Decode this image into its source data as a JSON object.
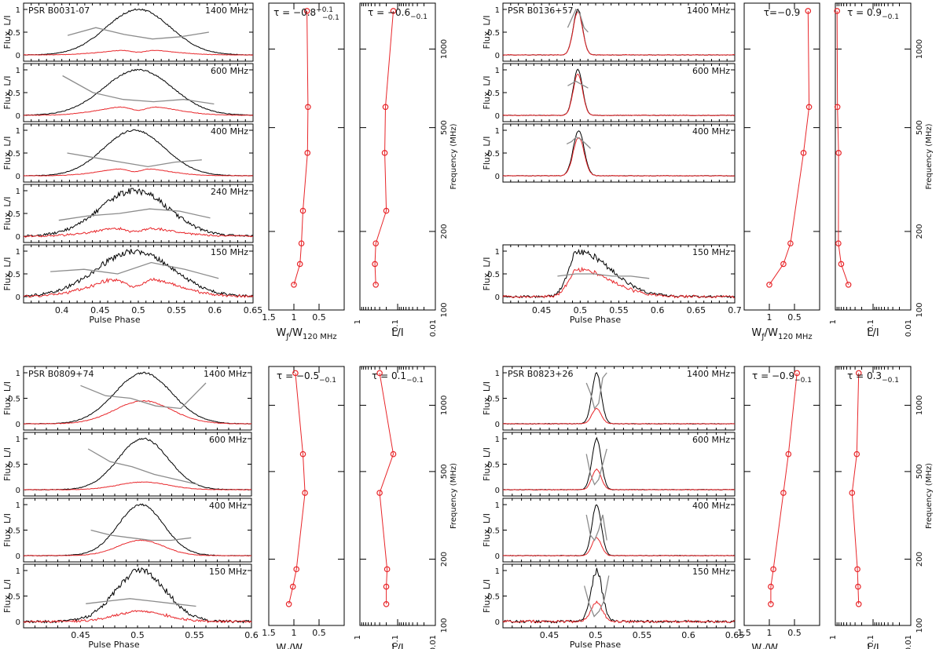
{
  "chart_data": [
    {
      "pulsar": "PSR  B0031-07",
      "type": "line",
      "profiles": [
        {
          "freq_label": "1400 MHz",
          "peak": 0.5,
          "width": 0.042,
          "L_frac": 0.12,
          "pa": [
            0.43,
            0.6,
            0.45,
            0.35,
            0.4,
            0.5
          ]
        },
        {
          "freq_label": "600 MHz",
          "peak": 0.5,
          "width": 0.045,
          "L_frac": 0.22,
          "pa": [
            0.87,
            0.5,
            0.35,
            0.3,
            0.35,
            0.25
          ]
        },
        {
          "freq_label": "400 MHz",
          "peak": 0.495,
          "width": 0.04,
          "L_frac": 0.18,
          "pa": [
            0.5,
            0.4,
            0.3,
            0.2,
            0.3,
            0.35
          ]
        },
        {
          "freq_label": "240 MHz",
          "peak": 0.495,
          "width": 0.045,
          "L_frac": 0.2,
          "pa": [
            0.35,
            0.45,
            0.5,
            0.6,
            0.55,
            0.4
          ]
        },
        {
          "freq_label": "150 MHz",
          "peak": 0.495,
          "width": 0.05,
          "L_frac": 0.45,
          "pa": [
            0.55,
            0.6,
            0.5,
            0.75,
            0.6,
            0.4
          ]
        }
      ],
      "phase_axis": {
        "label": "Pulse Phase",
        "min": 0.35,
        "max": 0.65,
        "ticks": [
          "0.4",
          "0.45",
          "0.5",
          "0.55",
          "0.6",
          "0.65"
        ]
      },
      "width_panel": {
        "tau": "τ = −0.8",
        "tau_sup": "+0.1",
        "tau_sub": "−0.1",
        "xlabel": "W",
        "xlabel_sub": "ƒ",
        "xlabel_tail": "/W",
        "xlabel_tail_sub": "120 MHz",
        "ticks": [
          "1.5",
          "1",
          "0.5"
        ],
        "points": [
          {
            "freq": 1400,
            "value": 0.74
          },
          {
            "freq": 600,
            "value": 0.72
          },
          {
            "freq": 400,
            "value": 0.73
          },
          {
            "freq": 240,
            "value": 0.82
          },
          {
            "freq": 180,
            "value": 0.85
          },
          {
            "freq": 150,
            "value": 0.88
          },
          {
            "freq": 125,
            "value": 1.0
          }
        ]
      },
      "lin_panel": {
        "tau": "τ = −0.6",
        "tau_sup": "",
        "tau_sub": "−0.1",
        "xlabel": "L/I",
        "ticks": [
          "1",
          "0.1",
          "0.01"
        ],
        "points": [
          {
            "freq": 1400,
            "value": 0.13
          },
          {
            "freq": 600,
            "value": 0.21
          },
          {
            "freq": 400,
            "value": 0.22
          },
          {
            "freq": 240,
            "value": 0.2
          },
          {
            "freq": 180,
            "value": 0.38
          },
          {
            "freq": 150,
            "value": 0.4
          },
          {
            "freq": 125,
            "value": 0.38
          }
        ]
      },
      "freq_axis": {
        "label": "Frequency (MHz)",
        "ticks": [
          "1000",
          "500",
          "200",
          "100"
        ]
      }
    },
    {
      "pulsar": "PSR  B0136+57",
      "type": "line",
      "profiles": [
        {
          "freq_label": "1400 MHz",
          "peak": 0.497,
          "width": 0.006,
          "L_frac": 0.95,
          "pa": [
            0.6,
            0.8,
            1.0,
            0.9,
            0.6,
            0.5
          ]
        },
        {
          "freq_label": "600 MHz",
          "peak": 0.497,
          "width": 0.006,
          "L_frac": 0.9,
          "pa": [
            0.65,
            0.7,
            0.75,
            0.7,
            0.65,
            0.6
          ]
        },
        {
          "freq_label": "400 MHz",
          "peak": 0.498,
          "width": 0.007,
          "L_frac": 0.85,
          "pa": [
            0.7,
            0.75,
            0.85,
            0.8,
            0.7,
            0.6
          ]
        },
        {
          "freq_label": "150 MHz",
          "peak": 0.497,
          "width": 0.012,
          "L_frac": 0.6,
          "pa": [
            0.45,
            0.5,
            0.5,
            0.45,
            0.45,
            0.4
          ]
        }
      ],
      "phase_axis": {
        "label": "Pulse Phase",
        "min": 0.4,
        "max": 0.7,
        "ticks": [
          "0.45",
          "0.5",
          "0.55",
          "0.6",
          "0.65",
          "0.7"
        ]
      },
      "width_panel": {
        "tau": "τ=−0.9",
        "tau_sup": "",
        "tau_sub": "",
        "xlabel": "W",
        "xlabel_sub": "ƒ",
        "xlabel_tail": "/W",
        "xlabel_tail_sub": "120 MHz",
        "ticks": [
          "1",
          "0.5"
        ],
        "points": [
          {
            "freq": 1400,
            "value": 0.23
          },
          {
            "freq": 600,
            "value": 0.21
          },
          {
            "freq": 400,
            "value": 0.32
          },
          {
            "freq": 180,
            "value": 0.58
          },
          {
            "freq": 150,
            "value": 0.72
          },
          {
            "freq": 125,
            "value": 1.0
          }
        ]
      },
      "lin_panel": {
        "tau": "τ = 0.9",
        "tau_sup": "",
        "tau_sub": "−0.1",
        "xlabel": "L/I",
        "ticks": [
          "1",
          "0.1",
          "0.01"
        ],
        "points": [
          {
            "freq": 1400,
            "value": 0.9
          },
          {
            "freq": 600,
            "value": 0.88
          },
          {
            "freq": 400,
            "value": 0.82
          },
          {
            "freq": 180,
            "value": 0.83
          },
          {
            "freq": 150,
            "value": 0.7
          },
          {
            "freq": 125,
            "value": 0.45
          }
        ]
      },
      "freq_axis": {
        "label": "Frequency (MHz)",
        "ticks": [
          "1000",
          "500",
          "200",
          "100"
        ]
      }
    },
    {
      "pulsar": "PSR  B0809+74",
      "type": "line",
      "profiles": [
        {
          "freq_label": "1400 MHz",
          "peak": 0.505,
          "width": 0.025,
          "L_frac": 0.45,
          "pa": [
            0.75,
            0.55,
            0.5,
            0.35,
            0.3,
            0.8
          ]
        },
        {
          "freq_label": "600 MHz",
          "peak": 0.505,
          "width": 0.022,
          "L_frac": 0.15,
          "pa": [
            0.8,
            0.55,
            0.45,
            0.3,
            0.2,
            0.1
          ]
        },
        {
          "freq_label": "400 MHz",
          "peak": 0.503,
          "width": 0.02,
          "L_frac": 0.3,
          "pa": [
            0.5,
            0.4,
            0.35,
            0.3,
            0.3,
            0.35
          ]
        },
        {
          "freq_label": "150 MHz",
          "peak": 0.503,
          "width": 0.022,
          "L_frac": 0.2,
          "pa": [
            0.35,
            0.4,
            0.45,
            0.4,
            0.35,
            0.3
          ]
        }
      ],
      "phase_axis": {
        "label": "Pulse Phase",
        "min": 0.4,
        "max": 0.6,
        "ticks": [
          "0.45",
          "0.5",
          "0.55",
          "0.6"
        ]
      },
      "width_panel": {
        "tau": "τ = −0.5",
        "tau_sup": "",
        "tau_sub": "−0.1",
        "xlabel": "W",
        "xlabel_sub": "ƒ",
        "xlabel_tail": "/W",
        "xlabel_tail_sub": "120 MHz",
        "ticks": [
          "1.5",
          "1",
          "0.5"
        ],
        "points": [
          {
            "freq": 1400,
            "value": 0.97
          },
          {
            "freq": 600,
            "value": 0.82
          },
          {
            "freq": 400,
            "value": 0.78
          },
          {
            "freq": 180,
            "value": 0.95
          },
          {
            "freq": 150,
            "value": 1.02
          },
          {
            "freq": 125,
            "value": 1.1
          }
        ]
      },
      "lin_panel": {
        "tau": "τ = 0.1",
        "tau_sup": "",
        "tau_sub": "−0.1",
        "xlabel": "L/I",
        "ticks": [
          "1",
          "0.1",
          "0.01"
        ],
        "points": [
          {
            "freq": 1400,
            "value": 0.3
          },
          {
            "freq": 600,
            "value": 0.13
          },
          {
            "freq": 400,
            "value": 0.3
          },
          {
            "freq": 180,
            "value": 0.19
          },
          {
            "freq": 150,
            "value": 0.2
          },
          {
            "freq": 125,
            "value": 0.2
          }
        ]
      },
      "freq_axis": {
        "label": "Frequency (MHz)",
        "ticks": [
          "1000",
          "500",
          "200",
          "100"
        ]
      }
    },
    {
      "pulsar": "PSR  B0823+26",
      "type": "line",
      "profiles": [
        {
          "freq_label": "1400 MHz",
          "peak": 0.501,
          "width": 0.005,
          "L_frac": 0.3,
          "pa": [
            0.8,
            0.6,
            0.3,
            0.4,
            0.9,
            1.0
          ]
        },
        {
          "freq_label": "600 MHz",
          "peak": 0.501,
          "width": 0.005,
          "L_frac": 0.4,
          "pa": [
            0.7,
            0.3,
            0.1,
            0.2,
            0.5,
            0.8
          ]
        },
        {
          "freq_label": "400 MHz",
          "peak": 0.501,
          "width": 0.005,
          "L_frac": 0.35,
          "pa": [
            0.8,
            0.4,
            0.3,
            0.5,
            0.8,
            0.3
          ]
        },
        {
          "freq_label": "150 MHz",
          "peak": 0.501,
          "width": 0.006,
          "L_frac": 0.38,
          "pa": [
            0.7,
            0.35,
            0.1,
            0.2,
            0.4,
            0.9
          ]
        }
      ],
      "phase_axis": {
        "label": "Pulse Phase",
        "min": 0.4,
        "max": 0.65,
        "ticks": [
          "0.45",
          "0.5",
          "0.55",
          "0.6",
          "0.65"
        ]
      },
      "width_panel": {
        "tau": "τ = −0.9",
        "tau_sup": "",
        "tau_sub": "−0.1",
        "xlabel": "W",
        "xlabel_sub": "ƒ",
        "xlabel_tail": "/W",
        "xlabel_tail_sub": "120 MHz",
        "ticks": [
          "1.5",
          "1",
          "0.5"
        ],
        "points": [
          {
            "freq": 1400,
            "value": 0.45
          },
          {
            "freq": 600,
            "value": 0.62
          },
          {
            "freq": 400,
            "value": 0.72
          },
          {
            "freq": 180,
            "value": 0.92
          },
          {
            "freq": 150,
            "value": 0.97
          },
          {
            "freq": 125,
            "value": 0.97
          }
        ]
      },
      "lin_panel": {
        "tau": "τ = 0.3",
        "tau_sup": "",
        "tau_sub": "−0.1",
        "xlabel": "L/I",
        "ticks": [
          "1",
          "0.1",
          "0.01"
        ],
        "points": [
          {
            "freq": 1400,
            "value": 0.24
          },
          {
            "freq": 600,
            "value": 0.27
          },
          {
            "freq": 400,
            "value": 0.36
          },
          {
            "freq": 180,
            "value": 0.26
          },
          {
            "freq": 150,
            "value": 0.25
          },
          {
            "freq": 125,
            "value": 0.24
          }
        ]
      },
      "freq_axis": {
        "label": "Frequency (MHz)",
        "ticks": [
          "1000",
          "500",
          "200",
          "100"
        ]
      }
    }
  ],
  "common": {
    "ylabel": "Flux, L/I",
    "ytick_labels": [
      "0",
      "0.5",
      "1"
    ],
    "colors": {
      "total": "#000000",
      "linear": "#e8262a",
      "pa": "#8c8c8c",
      "marker": "#e8262a"
    }
  }
}
